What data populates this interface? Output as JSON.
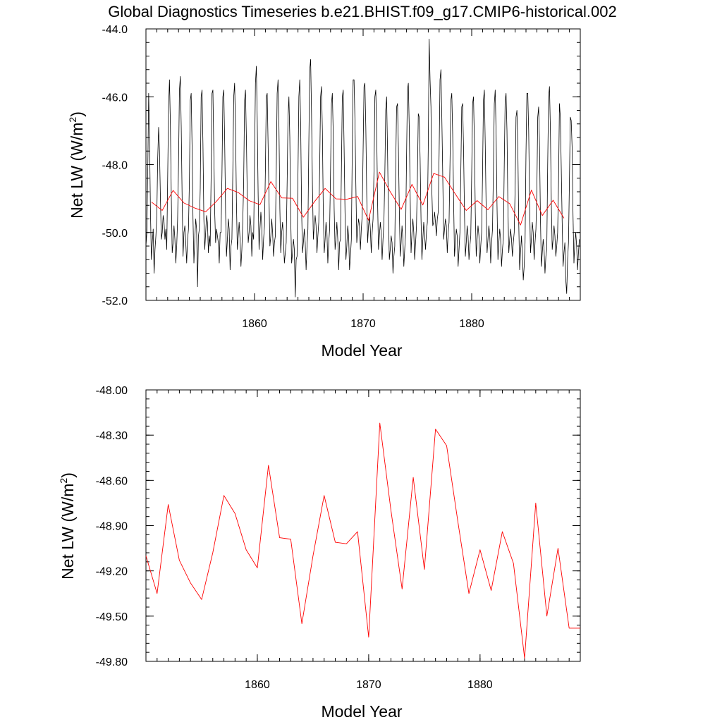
{
  "title": "Global Diagnostics Timeseries b.e21.BHIST.f09_g17.CMIP6-historical.002",
  "colors": {
    "monthly": "#000000",
    "annual": "#ff0000",
    "frame": "#000000"
  },
  "chart_data": [
    {
      "type": "line",
      "xlabel": "Model Year",
      "ylabel": {
        "text": "Net LW (W/m",
        "sup": "2",
        "close": ")"
      },
      "xlim": [
        1850,
        1890
      ],
      "ylim": [
        -52.0,
        -44.0
      ],
      "xticks": [
        1860,
        1870,
        1880
      ],
      "xtick_labels": [
        "1860",
        "1870",
        "1880"
      ],
      "yticks": [
        -52.0,
        -50.0,
        -48.0,
        -46.0,
        -44.0
      ],
      "ytick_labels": [
        "-52.0",
        "-50.0",
        "-48.0",
        "-46.0",
        "-44.0"
      ],
      "series": [
        {
          "name": "monthly",
          "color": "#000000",
          "x_start": 1850.0,
          "x_step": 0.08333,
          "values": [
            -50.4,
            -50.0,
            -48.2,
            -45.9,
            -47.3,
            -49.4,
            -50.8,
            -50.3,
            -49.9,
            -51.2,
            -50.5,
            -50.1,
            -49.5,
            -47.8,
            -46.9,
            -47.6,
            -49.0,
            -50.2,
            -50.0,
            -49.5,
            -49.7,
            -50.2,
            -49.9,
            -50.5,
            -48.4,
            -46.3,
            -45.5,
            -46.8,
            -48.9,
            -50.6,
            -50.3,
            -49.8,
            -50.2,
            -50.9,
            -50.4,
            -49.6,
            -48.0,
            -45.8,
            -45.4,
            -46.9,
            -49.0,
            -50.7,
            -50.0,
            -49.8,
            -50.3,
            -50.9,
            -50.2,
            -49.9,
            -48.5,
            -46.1,
            -45.9,
            -47.5,
            -49.6,
            -50.9,
            -50.2,
            -49.6,
            -49.9,
            -51.6,
            -50.1,
            -49.9,
            -48.7,
            -46.0,
            -45.8,
            -47.4,
            -49.6,
            -50.5,
            -50.0,
            -49.5,
            -49.7,
            -50.6,
            -50.1,
            -50.4,
            -48.4,
            -45.9,
            -45.8,
            -47.6,
            -49.4,
            -50.3,
            -49.9,
            -50.1,
            -50.3,
            -50.9,
            -50.0,
            -50.0,
            -48.3,
            -46.0,
            -45.8,
            -47.3,
            -49.4,
            -50.7,
            -50.2,
            -49.6,
            -49.9,
            -51.1,
            -50.4,
            -50.2,
            -48.2,
            -46.0,
            -45.6,
            -46.9,
            -49.1,
            -50.5,
            -50.1,
            -49.7,
            -50.2,
            -51.0,
            -50.5,
            -49.7,
            -48.5,
            -46.1,
            -45.8,
            -47.2,
            -49.0,
            -50.3,
            -50.0,
            -49.5,
            -49.8,
            -50.7,
            -50.0,
            -50.2,
            -47.9,
            -45.6,
            -45.1,
            -46.7,
            -48.9,
            -50.5,
            -49.9,
            -49.4,
            -49.8,
            -50.8,
            -50.2,
            -49.8,
            -48.2,
            -46.0,
            -45.9,
            -47.4,
            -49.0,
            -50.4,
            -50.1,
            -49.6,
            -50.0,
            -50.7,
            -50.3,
            -50.1,
            -48.2,
            -45.9,
            -45.5,
            -46.9,
            -49.3,
            -50.6,
            -50.0,
            -49.7,
            -50.2,
            -50.9,
            -50.6,
            -50.3,
            -48.6,
            -46.6,
            -46.0,
            -47.2,
            -49.6,
            -50.9,
            -50.6,
            -50.2,
            -50.5,
            -51.9,
            -50.8,
            -50.7,
            -48.3,
            -46.0,
            -45.5,
            -46.8,
            -49.3,
            -50.6,
            -50.3,
            -49.9,
            -50.3,
            -51.1,
            -50.4,
            -49.9,
            -47.4,
            -45.2,
            -44.9,
            -46.5,
            -48.6,
            -50.2,
            -49.8,
            -49.5,
            -49.8,
            -50.6,
            -50.1,
            -49.7,
            -48.1,
            -46.0,
            -45.7,
            -47.0,
            -49.4,
            -50.6,
            -50.2,
            -49.7,
            -50.0,
            -50.9,
            -50.3,
            -49.9,
            -48.2,
            -46.2,
            -45.9,
            -47.1,
            -49.3,
            -50.5,
            -50.2,
            -49.7,
            -50.2,
            -51.1,
            -50.3,
            -50.2,
            -48.2,
            -46.0,
            -45.8,
            -47.5,
            -49.4,
            -50.8,
            -50.4,
            -49.8,
            -50.1,
            -51.1,
            -50.7,
            -50.2,
            -47.6,
            -45.5,
            -45.5,
            -46.7,
            -48.6,
            -50.3,
            -49.9,
            -49.6,
            -49.8,
            -50.5,
            -49.9,
            -49.5,
            -47.6,
            -45.7,
            -45.6,
            -46.9,
            -48.9,
            -50.3,
            -49.8,
            -49.5,
            -49.9,
            -50.6,
            -50.0,
            -49.6,
            -48.2,
            -46.0,
            -45.8,
            -47.0,
            -49.1,
            -50.5,
            -50.1,
            -49.7,
            -50.0,
            -50.8,
            -50.2,
            -49.7,
            -48.3,
            -46.4,
            -46.0,
            -47.6,
            -49.5,
            -50.8,
            -50.5,
            -50.1,
            -50.3,
            -51.2,
            -50.7,
            -50.4,
            -48.1,
            -46.3,
            -46.2,
            -47.5,
            -49.3,
            -50.7,
            -50.3,
            -49.8,
            -50.2,
            -51.0,
            -50.5,
            -50.0,
            -47.8,
            -45.8,
            -45.6,
            -46.9,
            -48.9,
            -50.6,
            -50.0,
            -49.6,
            -50.0,
            -50.8,
            -50.3,
            -49.8,
            -48.4,
            -46.5,
            -46.6,
            -47.8,
            -49.6,
            -50.8,
            -50.2,
            -49.7,
            -50.1,
            -50.5,
            -50.0,
            -49.7,
            -47.5,
            -44.3,
            -45.5,
            -46.3,
            -48.8,
            -49.8,
            -49.7,
            -49.4,
            -49.7,
            -50.1,
            -49.6,
            -49.4,
            -47.7,
            -45.5,
            -45.2,
            -46.6,
            -48.3,
            -50.2,
            -49.9,
            -49.6,
            -49.8,
            -50.6,
            -50.0,
            -49.7,
            -48.0,
            -46.1,
            -45.9,
            -47.1,
            -49.0,
            -50.7,
            -50.3,
            -49.9,
            -50.1,
            -51.0,
            -50.5,
            -50.0,
            -48.2,
            -46.3,
            -46.2,
            -47.5,
            -49.4,
            -50.7,
            -50.3,
            -49.8,
            -50.1,
            -50.8,
            -50.4,
            -50.1,
            -48.3,
            -46.2,
            -46.0,
            -47.3,
            -49.4,
            -50.7,
            -50.2,
            -49.8,
            -50.1,
            -50.9,
            -50.4,
            -50.0,
            -48.3,
            -46.1,
            -45.8,
            -47.4,
            -49.3,
            -50.6,
            -50.2,
            -49.8,
            -50.1,
            -50.9,
            -50.3,
            -49.9,
            -48.2,
            -46.2,
            -45.8,
            -47.1,
            -49.2,
            -50.8,
            -50.3,
            -49.9,
            -50.2,
            -51.0,
            -50.5,
            -50.2,
            -48.0,
            -46.1,
            -45.9,
            -47.0,
            -49.2,
            -50.6,
            -50.2,
            -49.9,
            -50.2,
            -50.7,
            -50.3,
            -50.0,
            -48.7,
            -46.6,
            -46.4,
            -47.5,
            -49.7,
            -51.1,
            -50.6,
            -50.1,
            -50.6,
            -51.4,
            -51.0,
            -50.3,
            -47.7,
            -45.9,
            -45.9,
            -47.0,
            -49.1,
            -50.6,
            -50.2,
            -49.7,
            -50.0,
            -50.8,
            -50.3,
            -49.9,
            -48.8,
            -46.6,
            -46.3,
            -47.5,
            -49.6,
            -51.0,
            -50.6,
            -50.2,
            -50.5,
            -51.2,
            -50.7,
            -50.5,
            -48.0,
            -46.0,
            -45.7,
            -47.0,
            -49.1,
            -50.5,
            -50.2,
            -49.8,
            -50.1,
            -50.7,
            -50.4,
            -50.0,
            -48.5,
            -46.2,
            -46.6,
            -48.1,
            -49.7,
            -51.0,
            -50.6,
            -50.3,
            -51.4,
            -51.8,
            -50.8,
            -50.3,
            -48.5,
            -46.6,
            -46.7,
            -47.5,
            -49.5,
            -50.9,
            -50.3,
            -50.0,
            -50.4,
            -51.1,
            -50.6,
            -50.2
          ]
        },
        {
          "name": "annual",
          "color": "#ff0000",
          "x": [
            1850.5,
            1851.5,
            1852.5,
            1853.5,
            1854.5,
            1855.5,
            1856.5,
            1857.5,
            1858.5,
            1859.5,
            1860.5,
            1861.5,
            1862.5,
            1863.5,
            1864.5,
            1865.5,
            1866.5,
            1867.5,
            1868.5,
            1869.5,
            1870.5,
            1871.5,
            1872.5,
            1873.5,
            1874.5,
            1875.5,
            1876.5,
            1877.5,
            1878.5,
            1879.5,
            1880.5,
            1881.5,
            1882.5,
            1883.5,
            1884.5,
            1885.5,
            1886.5,
            1887.5,
            1888.5
          ],
          "values": [
            -49.1,
            -49.35,
            -48.76,
            -49.13,
            -49.28,
            -49.39,
            -49.08,
            -48.7,
            -48.82,
            -49.06,
            -49.18,
            -48.5,
            -48.98,
            -48.99,
            -49.55,
            -49.1,
            -48.7,
            -49.01,
            -49.02,
            -48.94,
            -49.64,
            -48.22,
            -48.8,
            -49.32,
            -48.58,
            -49.19,
            -48.26,
            -48.37,
            -48.87,
            -49.35,
            -49.06,
            -49.33,
            -48.94,
            -49.15,
            -49.78,
            -48.75,
            -49.5,
            -49.05,
            -49.58
          ]
        }
      ]
    },
    {
      "type": "line",
      "xlabel": "Model Year",
      "ylabel": {
        "text": "Net LW (W/m",
        "sup": "2",
        "close": ")"
      },
      "xlim": [
        1850,
        1889
      ],
      "ylim": [
        -49.8,
        -48.0
      ],
      "xticks": [
        1860,
        1870,
        1880
      ],
      "xtick_labels": [
        "1860",
        "1870",
        "1880"
      ],
      "yticks": [
        -49.8,
        -49.5,
        -49.2,
        -48.9,
        -48.6,
        -48.3,
        -48.0
      ],
      "ytick_labels": [
        "-49.80",
        "-49.50",
        "-49.20",
        "-48.90",
        "-48.60",
        "-48.30",
        "-48.00"
      ],
      "series": [
        {
          "name": "annual",
          "color": "#ff0000",
          "x": [
            1850,
            1851,
            1852,
            1853,
            1854,
            1855,
            1856,
            1857,
            1858,
            1859,
            1860,
            1861,
            1862,
            1863,
            1864,
            1865,
            1866,
            1867,
            1868,
            1869,
            1870,
            1871,
            1872,
            1873,
            1874,
            1875,
            1876,
            1877,
            1878,
            1879,
            1880,
            1881,
            1882,
            1883,
            1884,
            1885,
            1886,
            1887,
            1888,
            1889
          ],
          "values": [
            -49.1,
            -49.35,
            -48.76,
            -49.13,
            -49.28,
            -49.39,
            -49.08,
            -48.7,
            -48.82,
            -49.06,
            -49.18,
            -48.5,
            -48.98,
            -48.99,
            -49.55,
            -49.1,
            -48.7,
            -49.01,
            -49.02,
            -48.94,
            -49.64,
            -48.22,
            -48.8,
            -49.32,
            -48.58,
            -49.19,
            -48.26,
            -48.37,
            -48.87,
            -49.35,
            -49.06,
            -49.33,
            -48.94,
            -49.15,
            -49.78,
            -48.75,
            -49.5,
            -49.05,
            -49.58,
            -49.58
          ]
        }
      ]
    }
  ]
}
